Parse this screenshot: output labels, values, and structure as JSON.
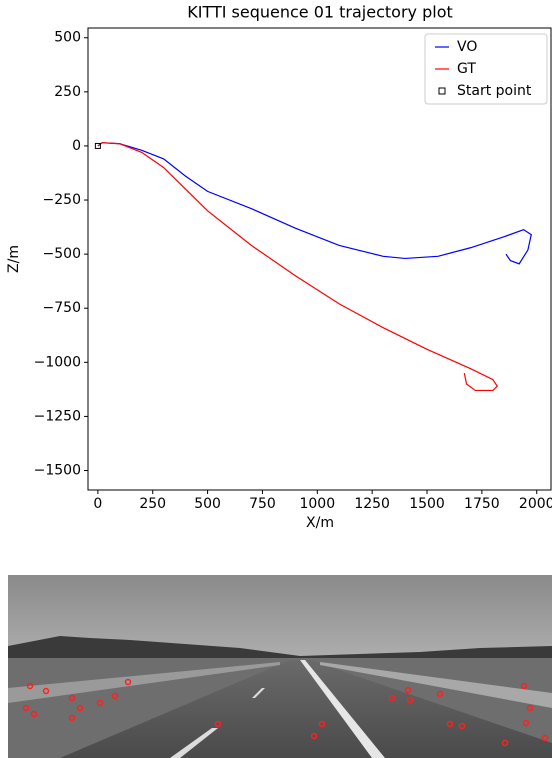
{
  "chart_data": {
    "type": "line",
    "title": "KITTI sequence 01 trajectory plot",
    "xlabel": "X/m",
    "ylabel": "Z/m",
    "xlim": [
      -45,
      2065
    ],
    "ylim": [
      -1590,
      545
    ],
    "xticks": [
      0,
      250,
      500,
      750,
      1000,
      1250,
      1500,
      1750,
      2000
    ],
    "yticks": [
      500,
      250,
      0,
      {
        "value": -250,
        "label": "−250"
      },
      {
        "value": -500,
        "label": "−500"
      },
      {
        "value": -750,
        "label": "−750"
      },
      {
        "value": -1000,
        "label": "−1000"
      },
      {
        "value": -1250,
        "label": "−1250"
      },
      {
        "value": -1500,
        "label": "−1500"
      }
    ],
    "legend": "upper right",
    "series": [
      {
        "name": "VO",
        "color": "#0000ff",
        "x": [
          0,
          20,
          100,
          200,
          300,
          400,
          500,
          700,
          900,
          1100,
          1300,
          1400,
          1550,
          1700,
          1850,
          1940,
          1975,
          1960,
          1920,
          1880,
          1860
        ],
        "values": [
          0,
          15,
          10,
          -20,
          -60,
          -140,
          -210,
          -290,
          -380,
          -460,
          -510,
          -520,
          -510,
          -470,
          -420,
          -387,
          -410,
          -480,
          -545,
          -530,
          -500
        ]
      },
      {
        "name": "GT",
        "color": "#ff0000",
        "x": [
          0,
          20,
          100,
          200,
          300,
          400,
          500,
          700,
          900,
          1100,
          1300,
          1500,
          1700,
          1800,
          1820,
          1800,
          1720,
          1680,
          1670
        ],
        "values": [
          0,
          15,
          10,
          -30,
          -100,
          -200,
          -300,
          -460,
          -600,
          -730,
          -840,
          -940,
          -1030,
          -1080,
          -1110,
          -1130,
          -1130,
          -1100,
          -1050
        ]
      },
      {
        "name": "Start point",
        "color": "#000000",
        "marker": "square",
        "x": [
          0
        ],
        "values": [
          0
        ]
      }
    ]
  }
}
